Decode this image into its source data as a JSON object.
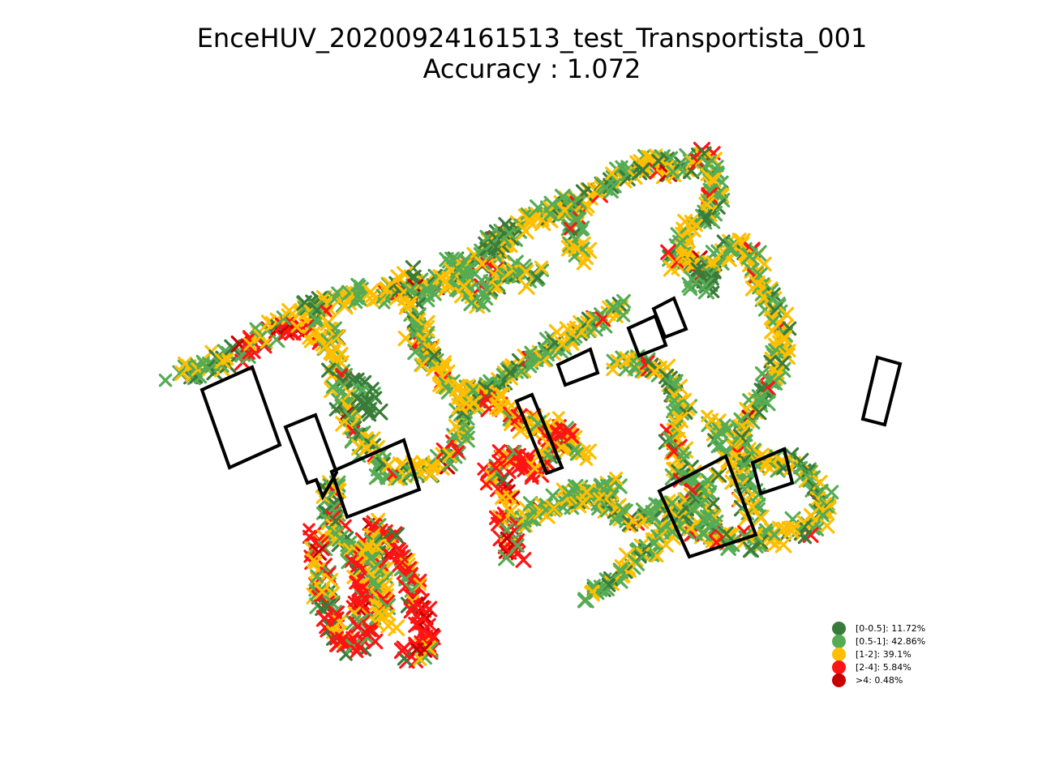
{
  "title": {
    "line1": "EnceHUV_20200924161513_test_Transportista_001",
    "line2": "Accuracy : 1.072"
  },
  "legend": [
    {
      "label": "[0-0.5]: 11.72%",
      "color": "#3a7a3a"
    },
    {
      "label": "[0.5-1]: 42.86%",
      "color": "#55ac55"
    },
    {
      "label": "[1-2]: 39.1%",
      "color": "#ffbe00"
    },
    {
      "label": "[2-4]: 5.84%",
      "color": "#ff1414"
    },
    {
      "label": ">4: 0.48%",
      "color": "#c80000"
    }
  ],
  "marker": "x-mark",
  "obstacle_outline_color": "#000000"
}
